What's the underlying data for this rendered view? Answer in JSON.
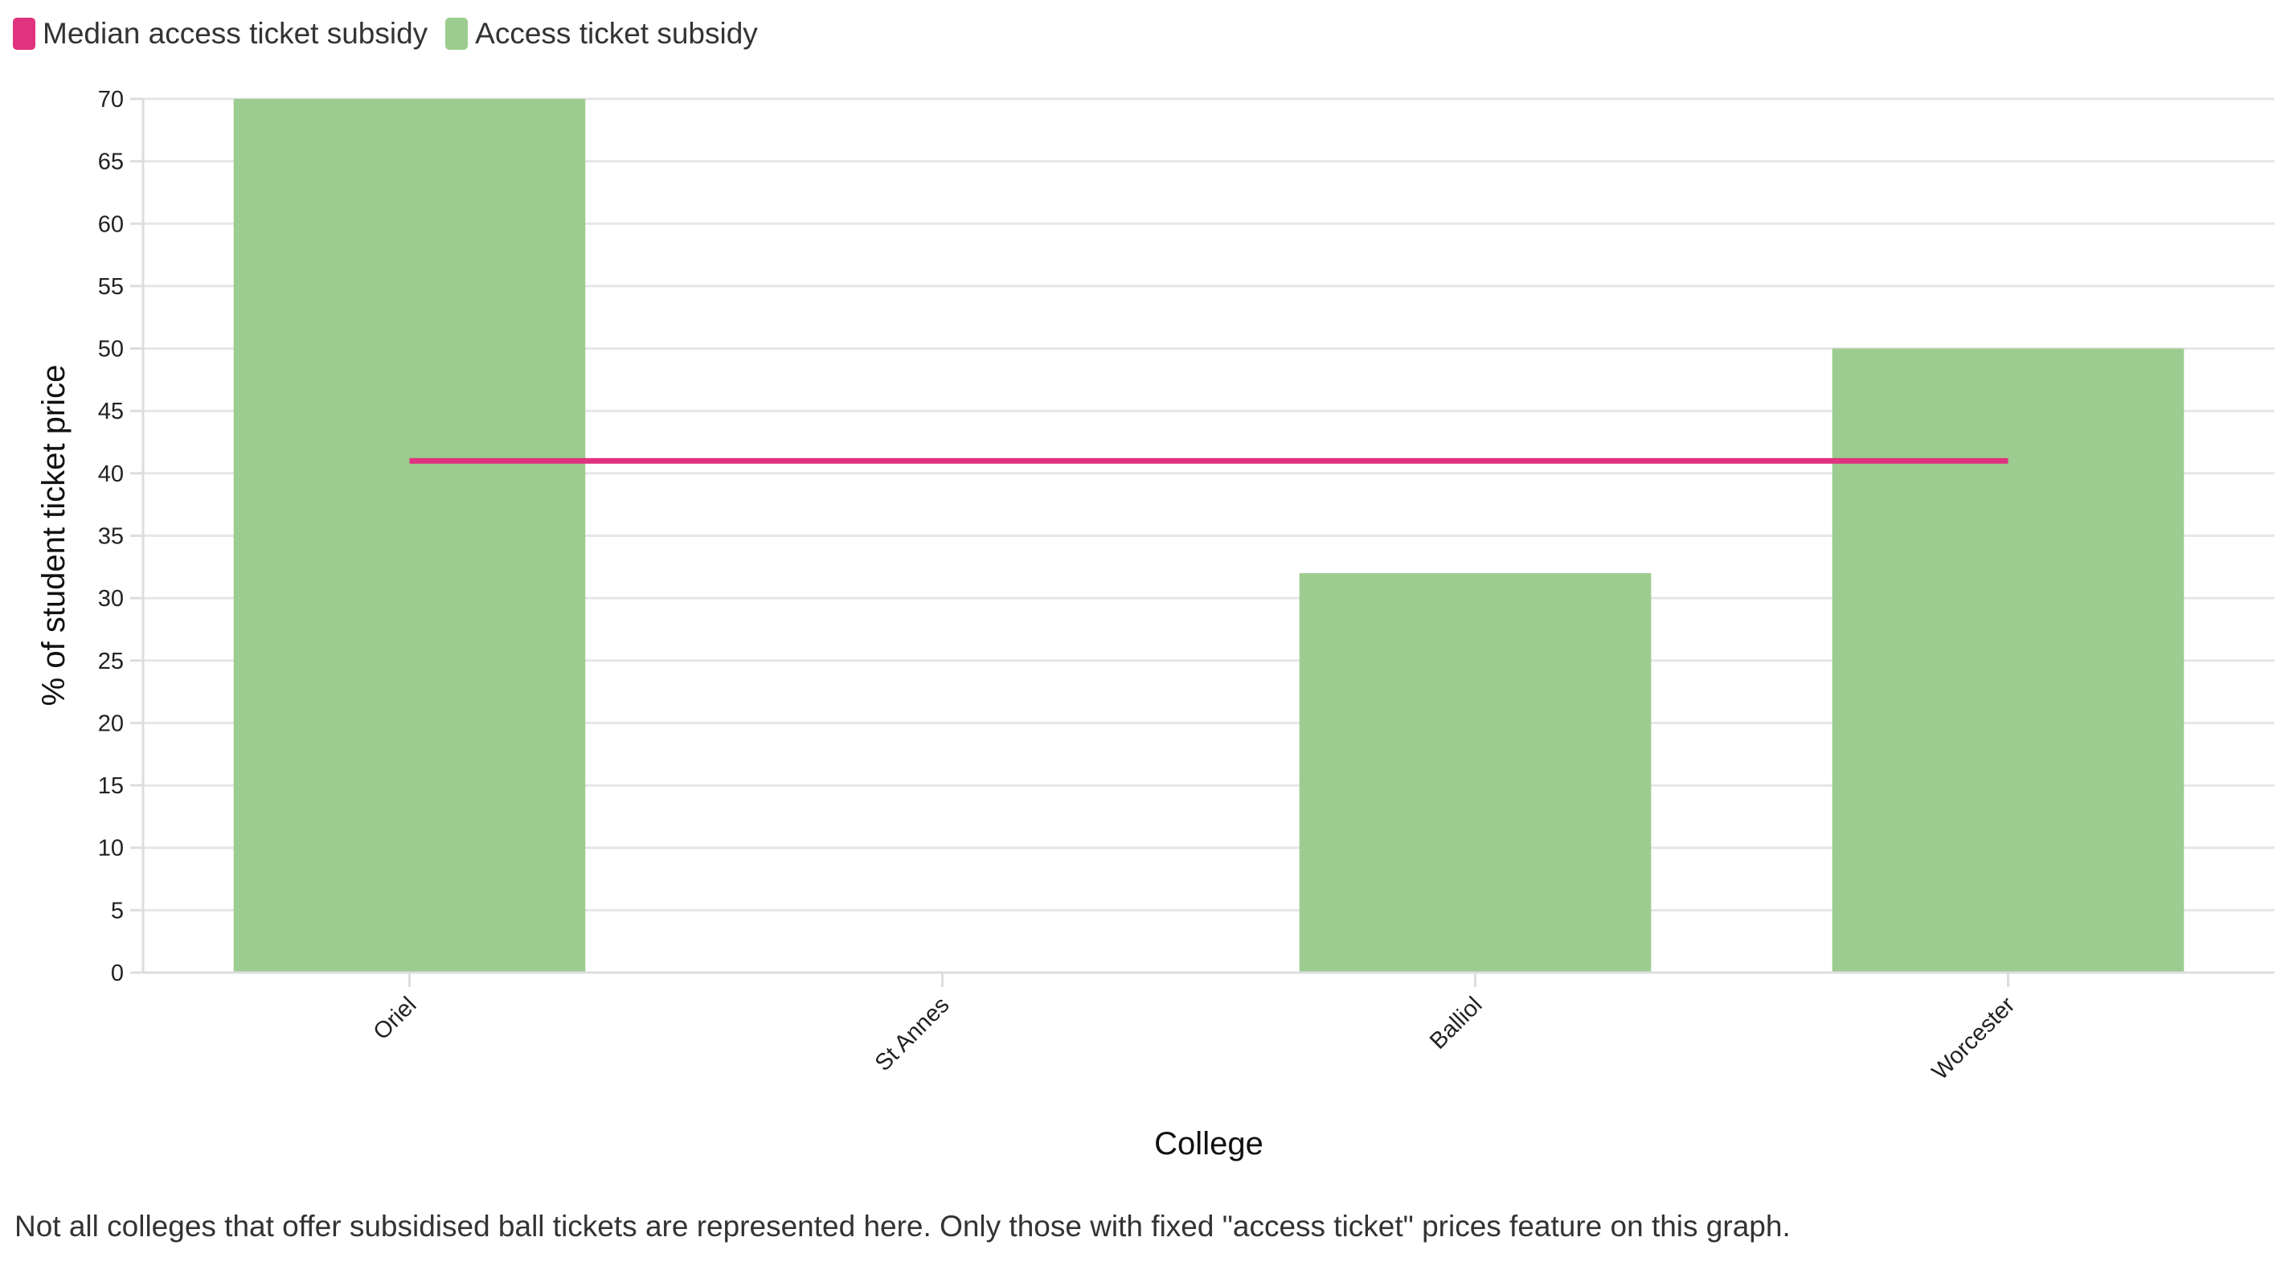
{
  "legend": [
    {
      "label": "Median access ticket subsidy",
      "color": "#e0337f"
    },
    {
      "label": "Access ticket subsidy",
      "color": "#9ccc8f"
    }
  ],
  "chart_data": {
    "type": "bar",
    "categories": [
      "Oriel",
      "St Annes",
      "Balliol",
      "Worcester"
    ],
    "series": [
      {
        "name": "Access ticket subsidy",
        "type": "bar",
        "values": [
          70,
          0,
          32,
          50
        ],
        "color": "#9ccc8f"
      },
      {
        "name": "Median access ticket subsidy",
        "type": "line",
        "values": [
          41,
          41,
          41,
          41
        ],
        "color": "#e0337f"
      }
    ],
    "xlabel": "College",
    "ylabel": "% of student ticket price",
    "ylim": [
      0,
      70
    ],
    "yticks": [
      0,
      5,
      10,
      15,
      20,
      25,
      30,
      35,
      40,
      45,
      50,
      55,
      60,
      65,
      70
    ],
    "grid": true,
    "legend_position": "top-left"
  },
  "footnote": "Not all colleges that offer subsidised ball tickets are represented here. Only those with fixed \"access ticket\" prices feature on this graph."
}
